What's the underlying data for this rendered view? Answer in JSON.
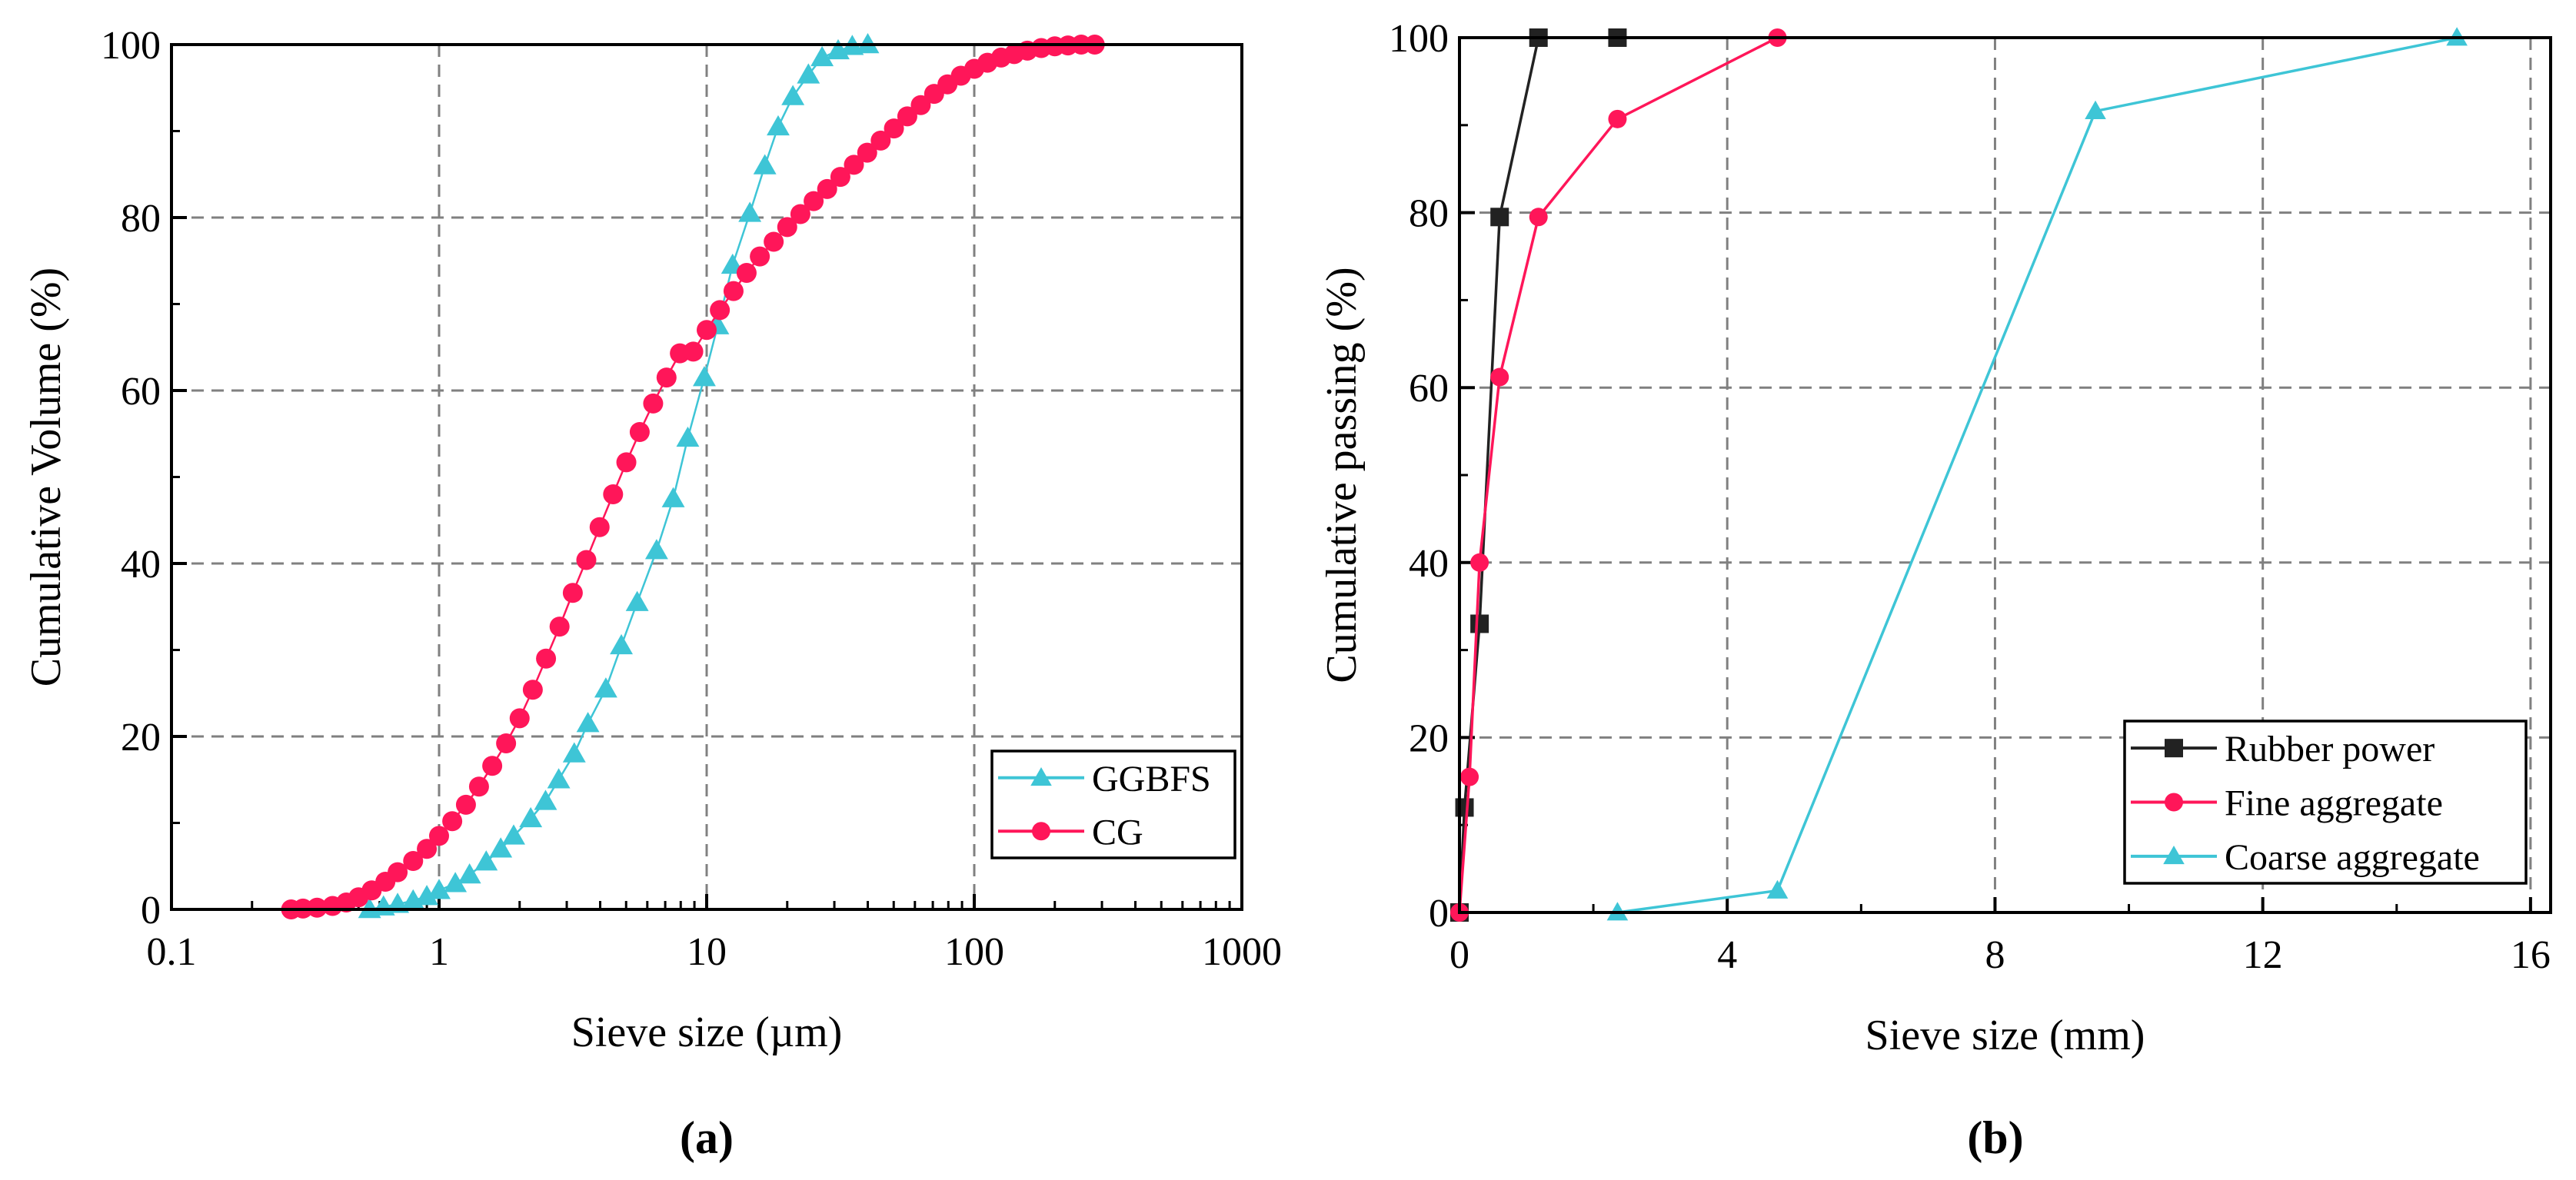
{
  "chart_data": [
    {
      "type": "scatter",
      "panel_label": "(a)",
      "panel_letter": "a",
      "xlabel": "Sieve size (µm)",
      "ylabel": "Cumulative Volume (%)",
      "xscale": "log",
      "xlim": [
        0.1,
        1000
      ],
      "ylim": [
        0,
        100
      ],
      "xticks": [
        0.1,
        1,
        10,
        100,
        1000
      ],
      "xtick_labels": [
        "0.1",
        "1",
        "10",
        "100",
        "1000"
      ],
      "yticks": [
        0,
        20,
        40,
        60,
        80,
        100
      ],
      "ytick_labels": [
        "0",
        "20",
        "40",
        "60",
        "80",
        "100"
      ],
      "grid": true,
      "legend_position": "bottom-right",
      "series": [
        {
          "name": "GGBFS",
          "color": "#3ec5d6",
          "marker": "triangle",
          "x": [
            0.55,
            0.62,
            0.7,
            0.8,
            0.9,
            1.0,
            1.15,
            1.3,
            1.5,
            1.7,
            1.9,
            2.2,
            2.5,
            2.8,
            3.2,
            3.6,
            4.2,
            4.8,
            5.5,
            6.5,
            7.5,
            8.5,
            9.8,
            11,
            12.5,
            14.5,
            16.5,
            18.5,
            21,
            24,
            27,
            31,
            35,
            40
          ],
          "y": [
            0,
            0.3,
            0.6,
            1,
            1.5,
            2.2,
            3,
            4,
            5.5,
            7,
            8.5,
            10.5,
            12.5,
            15,
            18,
            21.5,
            25.5,
            30.5,
            35.5,
            41.5,
            47.5,
            54.5,
            61.5,
            67.5,
            74.5,
            80.5,
            86,
            90.5,
            94,
            96.5,
            98.5,
            99.3,
            99.8,
            100
          ]
        },
        {
          "name": "CG",
          "color": "#ff1659",
          "marker": "circle",
          "x": [
            0.28,
            0.31,
            0.35,
            0.4,
            0.45,
            0.5,
            0.56,
            0.63,
            0.7,
            0.8,
            0.9,
            1.0,
            1.12,
            1.26,
            1.41,
            1.58,
            1.78,
            2.0,
            2.24,
            2.51,
            2.82,
            3.16,
            3.55,
            3.98,
            4.47,
            5.01,
            5.62,
            6.31,
            7.08,
            7.94,
            8.91,
            10,
            11.2,
            12.6,
            14.1,
            15.8,
            17.8,
            20,
            22.4,
            25.1,
            28.2,
            31.6,
            35.5,
            39.8,
            44.7,
            50.1,
            56.2,
            63.1,
            70.8,
            79.4,
            89.1,
            100,
            112,
            126,
            141,
            158,
            178,
            200,
            224,
            251,
            282
          ],
          "y": [
            0,
            0.1,
            0.2,
            0.4,
            0.8,
            1.4,
            2.2,
            3.2,
            4.3,
            5.6,
            7,
            8.5,
            10.2,
            12.1,
            14.2,
            16.6,
            19.2,
            22.1,
            25.4,
            29,
            32.7,
            36.6,
            40.4,
            44.2,
            48,
            51.7,
            55.2,
            58.5,
            61.5,
            64.3,
            64.5,
            67,
            69.3,
            71.5,
            73.6,
            75.5,
            77.2,
            78.9,
            80.4,
            81.9,
            83.3,
            84.7,
            86.1,
            87.5,
            88.9,
            90.3,
            91.7,
            93,
            94.3,
            95.4,
            96.4,
            97.2,
            97.9,
            98.5,
            98.9,
            99.3,
            99.6,
            99.8,
            99.9,
            100,
            100
          ]
        }
      ]
    },
    {
      "type": "line",
      "panel_label": "(b)",
      "panel_letter": "b",
      "xlabel": "Sieve size (mm)",
      "ylabel": "Cumulative passing (%)",
      "xlim": [
        0,
        16.3
      ],
      "ylim": [
        0,
        100
      ],
      "xticks": [
        0,
        4,
        8,
        12,
        16
      ],
      "xtick_labels": [
        "0",
        "4",
        "8",
        "12",
        "16"
      ],
      "yticks": [
        0,
        20,
        40,
        60,
        80,
        100
      ],
      "ytick_labels": [
        "0",
        "20",
        "40",
        "60",
        "80",
        "100"
      ],
      "grid": true,
      "legend_position": "bottom-right",
      "series": [
        {
          "name": "Rubber power",
          "color": "#222222",
          "marker": "square",
          "x": [
            0,
            0.075,
            0.3,
            0.6,
            1.18,
            2.36
          ],
          "y": [
            0,
            12,
            33,
            79.5,
            100,
            100
          ]
        },
        {
          "name": "Fine aggregate",
          "color": "#ff1659",
          "marker": "circle",
          "x": [
            0,
            0.15,
            0.3,
            0.6,
            1.18,
            2.36,
            4.75
          ],
          "y": [
            0,
            15.5,
            40,
            61.2,
            79.5,
            90.7,
            100
          ]
        },
        {
          "name": "Coarse aggregate",
          "color": "#3ec5d6",
          "marker": "triangle",
          "x": [
            2.36,
            4.75,
            9.5,
            14.9
          ],
          "y": [
            0,
            2.5,
            91.6,
            100
          ]
        }
      ]
    }
  ]
}
